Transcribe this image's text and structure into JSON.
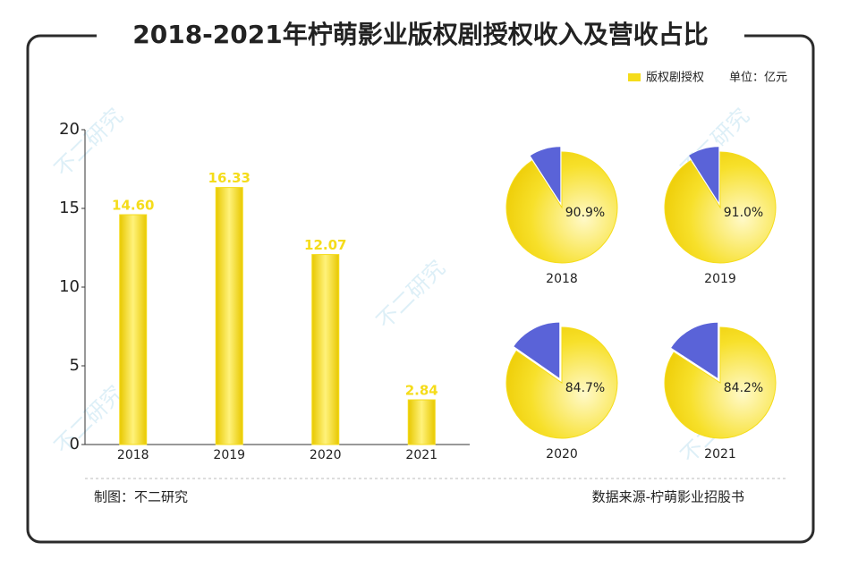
{
  "title": "2018-2021年柠萌影业版权剧授权收入及营收占比",
  "unit": "单位：亿元",
  "credit": "制图：不二研究",
  "source": "数据来源-柠萌影业招股书",
  "watermark": "不二研究",
  "chart_data": [
    {
      "type": "bar",
      "categories": [
        "2018",
        "2019",
        "2020",
        "2021"
      ],
      "series": [
        {
          "name": "版权剧授权",
          "color": "#f5dc1a",
          "values": [
            14.6,
            16.33,
            12.07,
            2.84
          ],
          "value_labels": [
            "14.60",
            "16.33",
            "12.07",
            "2.84"
          ]
        }
      ],
      "ylim": [
        0,
        20
      ],
      "yticks": [
        0,
        5,
        10,
        15,
        20
      ]
    },
    {
      "type": "pie",
      "title": "2018",
      "values": [
        90.9
      ],
      "value_labels": [
        "90.9%"
      ],
      "colors": [
        "#f5dc1a",
        "#5a63d8"
      ]
    },
    {
      "type": "pie",
      "title": "2019",
      "values": [
        91.0
      ],
      "value_labels": [
        "91.0%"
      ],
      "colors": [
        "#f5dc1a",
        "#5a63d8"
      ]
    },
    {
      "type": "pie",
      "title": "2020",
      "values": [
        84.7
      ],
      "value_labels": [
        "84.7%"
      ],
      "colors": [
        "#f5dc1a",
        "#5a63d8"
      ]
    },
    {
      "type": "pie",
      "title": "2021",
      "values": [
        84.2
      ],
      "value_labels": [
        "84.2%"
      ],
      "colors": [
        "#f5dc1a",
        "#5a63d8"
      ]
    }
  ]
}
